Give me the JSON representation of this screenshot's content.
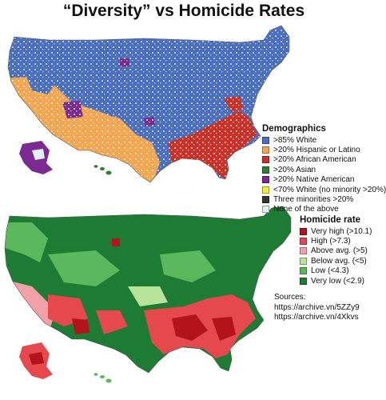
{
  "title": "“Diversity” vs Homicide Rates",
  "legends": {
    "demographics": {
      "title": "Demographics",
      "items": [
        {
          "label": ">85% White",
          "color": "#4a6fc2"
        },
        {
          "label": ">20% Hispanic or Latino",
          "color": "#f2a654"
        },
        {
          "label": ">20% African American",
          "color": "#c9302c"
        },
        {
          "label": ">20% Asian",
          "color": "#2e7d32"
        },
        {
          "label": ">20% Native American",
          "color": "#7b2a91"
        },
        {
          "label": "<70% White (no minority >20%)",
          "color": "#f4ea3c"
        },
        {
          "label": "Three minorities >20%",
          "color": "#333333"
        },
        {
          "label": "None of the above",
          "color": "#e4eef5"
        }
      ]
    },
    "homicide": {
      "title": "Homicide rate",
      "items": [
        {
          "label": "Very high (>10.1)",
          "color": "#b3131b"
        },
        {
          "label": "High (>7.3)",
          "color": "#e5484d"
        },
        {
          "label": "Above avg. (>5)",
          "color": "#f3a1a8"
        },
        {
          "label": "Below avg. (<5)",
          "color": "#b8e39a"
        },
        {
          "label": "Low (<4.3)",
          "color": "#5cb85c"
        },
        {
          "label": "Very low (<2.9)",
          "color": "#1e7b34"
        }
      ]
    }
  },
  "sources": {
    "label": "Sources:",
    "links": [
      "https://archive.vn/5ZZy9",
      "https://archive.vn/4Xkvs"
    ]
  }
}
